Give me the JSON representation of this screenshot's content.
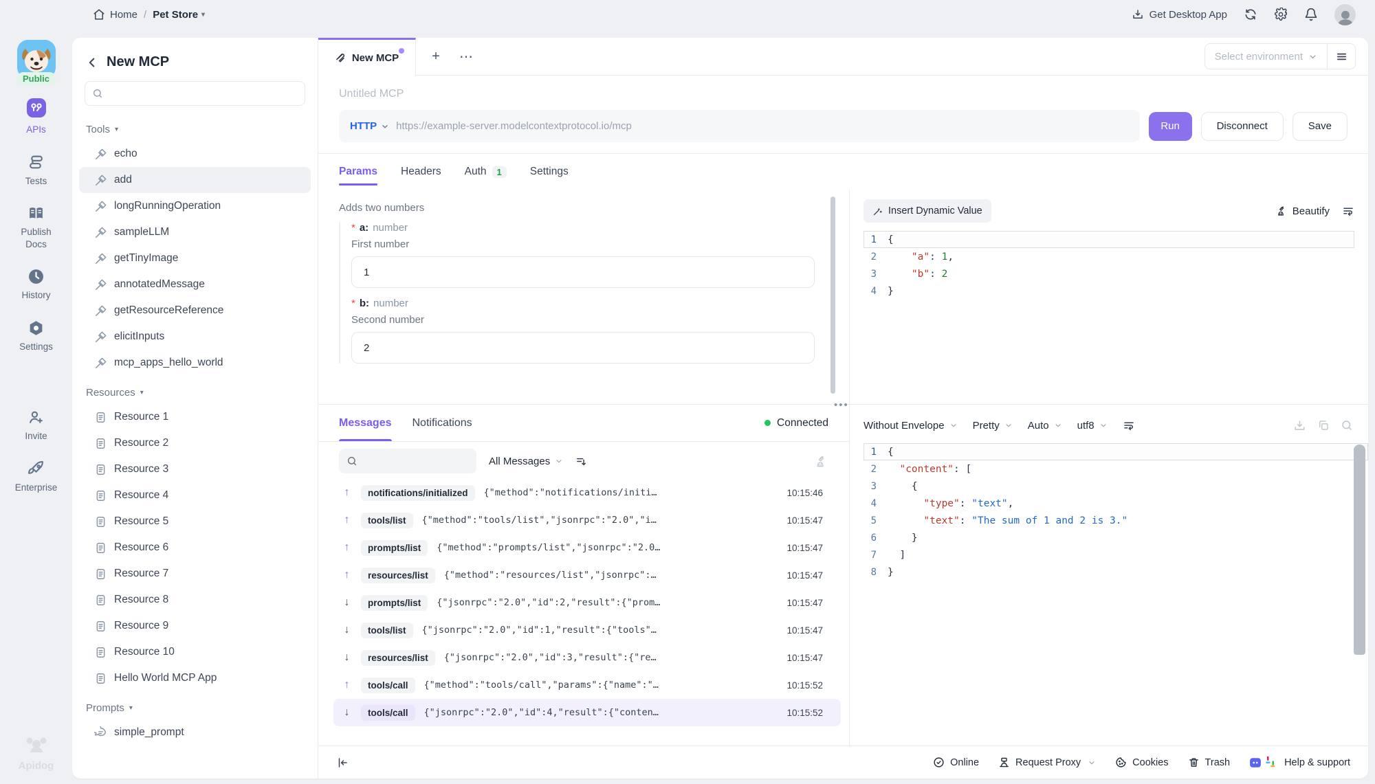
{
  "colors": {
    "accent_purple": "#8b72ec",
    "http_blue": "#2563eb",
    "connected_green": "#22c55e",
    "required_red": "#ef4444"
  },
  "topbar": {
    "home": "Home",
    "separator": "/",
    "project": "Pet Store",
    "get_desktop_app": "Get Desktop App"
  },
  "rail": {
    "workspace_label": "Public",
    "items": [
      {
        "label": "APIs",
        "icon": "apis-icon",
        "active": true
      },
      {
        "label": "Tests",
        "icon": "tests-icon",
        "active": false
      },
      {
        "label": "Publish Docs",
        "icon": "publish-docs-icon",
        "active": false
      },
      {
        "label": "History",
        "icon": "history-icon",
        "active": false
      },
      {
        "label": "Settings",
        "icon": "settings-icon",
        "active": false
      },
      {
        "label": "Invite",
        "icon": "invite-icon",
        "active": false
      },
      {
        "label": "Enterprise",
        "icon": "enterprise-icon",
        "active": false
      }
    ],
    "brand": "Apidog"
  },
  "sidebar": {
    "title": "New MCP",
    "search_placeholder": "",
    "sections": [
      {
        "label": "Tools",
        "icon": "tool-icon",
        "items": [
          "echo",
          "add",
          "longRunningOperation",
          "sampleLLM",
          "getTinyImage",
          "annotatedMessage",
          "getResourceReference",
          "elicitInputs",
          "mcp_apps_hello_world"
        ],
        "selected": "add"
      },
      {
        "label": "Resources",
        "icon": "resource-icon",
        "items": [
          "Resource 1",
          "Resource 2",
          "Resource 3",
          "Resource 4",
          "Resource 5",
          "Resource 6",
          "Resource 7",
          "Resource 8",
          "Resource 9",
          "Resource 10",
          "Hello World MCP App"
        ],
        "selected": ""
      },
      {
        "label": "Prompts",
        "icon": "prompt-icon",
        "items": [
          "simple_prompt"
        ],
        "selected": ""
      }
    ]
  },
  "main": {
    "tab": {
      "label": "New MCP",
      "modified": true
    },
    "plus": "+",
    "more": "⋯",
    "environment_placeholder": "Select environment",
    "request": {
      "name_placeholder": "Untitled MCP",
      "protocol": "HTTP",
      "url_placeholder": "https://example-server.modelcontextprotocol.io/mcp",
      "run_label": "Run",
      "disconnect_label": "Disconnect",
      "save_label": "Save",
      "tabs": [
        {
          "label": "Params",
          "active": true,
          "badge": ""
        },
        {
          "label": "Headers",
          "active": false,
          "badge": ""
        },
        {
          "label": "Auth",
          "active": false,
          "badge": "1"
        },
        {
          "label": "Settings",
          "active": false,
          "badge": ""
        }
      ]
    },
    "params": {
      "description": "Adds two numbers",
      "fields": [
        {
          "required": "*",
          "name": "a:",
          "type": "number",
          "description": "First number",
          "value": "1"
        },
        {
          "required": "*",
          "name": "b:",
          "type": "number",
          "description": "Second number",
          "value": "2"
        }
      ]
    },
    "body_editor": {
      "insert_dynamic_value": "Insert Dynamic Value",
      "beautify": "Beautify",
      "lines": [
        {
          "n": "1",
          "active": true,
          "tokens": [
            [
              "p",
              "{"
            ]
          ]
        },
        {
          "n": "2",
          "active": false,
          "tokens": [
            [
              "p",
              "    "
            ],
            [
              "k",
              "\"a\""
            ],
            [
              "p",
              ": "
            ],
            [
              "n",
              "1"
            ],
            [
              "p",
              ","
            ]
          ]
        },
        {
          "n": "3",
          "active": false,
          "tokens": [
            [
              "p",
              "    "
            ],
            [
              "k",
              "\"b\""
            ],
            [
              "p",
              ": "
            ],
            [
              "n",
              "2"
            ]
          ]
        },
        {
          "n": "4",
          "active": false,
          "tokens": [
            [
              "p",
              "}"
            ]
          ]
        }
      ]
    },
    "messages": {
      "tabs": [
        {
          "label": "Messages",
          "active": true
        },
        {
          "label": "Notifications",
          "active": false
        }
      ],
      "status": "Connected",
      "filter": "All Messages",
      "rows": [
        {
          "dir": "up",
          "method": "notifications/initialized",
          "preview": "{\"method\":\"notifications/initi…",
          "time": "10:15:46",
          "selected": false
        },
        {
          "dir": "up",
          "method": "tools/list",
          "preview": "{\"method\":\"tools/list\",\"jsonrpc\":\"2.0\",\"i…",
          "time": "10:15:47",
          "selected": false
        },
        {
          "dir": "up",
          "method": "prompts/list",
          "preview": "{\"method\":\"prompts/list\",\"jsonrpc\":\"2.0…",
          "time": "10:15:47",
          "selected": false
        },
        {
          "dir": "up",
          "method": "resources/list",
          "preview": "{\"method\":\"resources/list\",\"jsonrpc\":…",
          "time": "10:15:47",
          "selected": false
        },
        {
          "dir": "down",
          "method": "prompts/list",
          "preview": "{\"jsonrpc\":\"2.0\",\"id\":2,\"result\":{\"prom…",
          "time": "10:15:47",
          "selected": false
        },
        {
          "dir": "down",
          "method": "tools/list",
          "preview": "{\"jsonrpc\":\"2.0\",\"id\":1,\"result\":{\"tools\"…",
          "time": "10:15:47",
          "selected": false
        },
        {
          "dir": "down",
          "method": "resources/list",
          "preview": "{\"jsonrpc\":\"2.0\",\"id\":3,\"result\":{\"re…",
          "time": "10:15:47",
          "selected": false
        },
        {
          "dir": "up",
          "method": "tools/call",
          "preview": "{\"method\":\"tools/call\",\"params\":{\"name\":\"…",
          "time": "10:15:52",
          "selected": false
        },
        {
          "dir": "down",
          "method": "tools/call",
          "preview": "{\"jsonrpc\":\"2.0\",\"id\":4,\"result\":{\"conten…",
          "time": "10:15:52",
          "selected": true
        }
      ]
    },
    "response": {
      "envelope": "Without Envelope",
      "format": "Pretty",
      "mode": "Auto",
      "encoding": "utf8",
      "lines": [
        {
          "n": "1",
          "active": true,
          "tokens": [
            [
              "p",
              "{"
            ]
          ]
        },
        {
          "n": "2",
          "active": false,
          "tokens": [
            [
              "p",
              "  "
            ],
            [
              "k",
              "\"content\""
            ],
            [
              "p",
              ": ["
            ]
          ]
        },
        {
          "n": "3",
          "active": false,
          "tokens": [
            [
              "p",
              "    "
            ],
            [
              "p",
              "{"
            ]
          ]
        },
        {
          "n": "4",
          "active": false,
          "tokens": [
            [
              "p",
              "      "
            ],
            [
              "k",
              "\"type\""
            ],
            [
              "p",
              ": "
            ],
            [
              "s",
              "\"text\""
            ],
            [
              "p",
              ","
            ]
          ]
        },
        {
          "n": "5",
          "active": false,
          "tokens": [
            [
              "p",
              "      "
            ],
            [
              "k",
              "\"text\""
            ],
            [
              "p",
              ": "
            ],
            [
              "s",
              "\"The sum of 1 and 2 is 3.\""
            ]
          ]
        },
        {
          "n": "6",
          "active": false,
          "tokens": [
            [
              "p",
              "    "
            ],
            [
              "p",
              "}"
            ]
          ]
        },
        {
          "n": "7",
          "active": false,
          "tokens": [
            [
              "p",
              "  "
            ],
            [
              "p",
              "]"
            ]
          ]
        },
        {
          "n": "8",
          "active": false,
          "tokens": [
            [
              "p",
              "}"
            ]
          ]
        }
      ]
    }
  },
  "statusbar": {
    "online": "Online",
    "request_proxy": "Request Proxy",
    "cookies": "Cookies",
    "trash": "Trash",
    "help": "Help & support"
  }
}
